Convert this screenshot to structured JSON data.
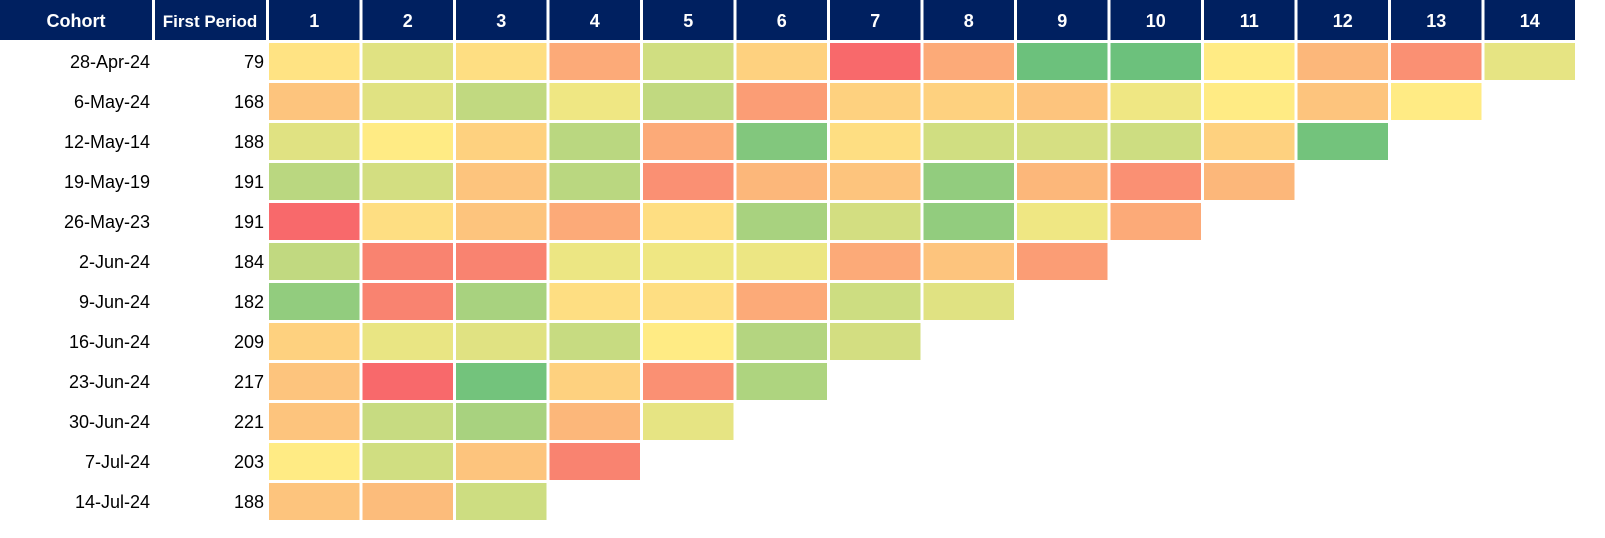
{
  "chart_data": {
    "type": "heatmap",
    "title": "",
    "xlabel": "",
    "ylabel": "",
    "columns": {
      "cohort_header": "Cohort",
      "first_period_header": "First Period",
      "periods": [
        "1",
        "2",
        "3",
        "4",
        "5",
        "6",
        "7",
        "8",
        "9",
        "10",
        "11",
        "12",
        "13",
        "14"
      ]
    },
    "header_color": "#002060",
    "header_text_color": "#ffffff",
    "color_scale": {
      "low": "#f8696b",
      "mid": "#ffeb84",
      "high": "#63be7b",
      "domain": [
        0,
        0.5,
        1
      ]
    },
    "rows": [
      {
        "cohort": "28-Apr-24",
        "first_period": "79",
        "values": [
          0.47,
          0.6,
          0.45,
          0.25,
          0.65,
          0.4,
          0.0,
          0.25,
          0.97,
          0.97,
          0.5,
          0.3,
          0.15,
          0.58
        ]
      },
      {
        "cohort": "6-May-24",
        "first_period": "168",
        "values": [
          0.35,
          0.6,
          0.7,
          0.55,
          0.7,
          0.2,
          0.4,
          0.4,
          0.35,
          0.55,
          0.5,
          0.35,
          0.5
        ]
      },
      {
        "cohort": "12-May-14",
        "first_period": "188",
        "values": [
          0.6,
          0.5,
          0.4,
          0.72,
          0.25,
          0.9,
          0.45,
          0.65,
          0.63,
          0.66,
          0.4,
          0.95
        ]
      },
      {
        "cohort": "19-May-19",
        "first_period": "191",
        "values": [
          0.72,
          0.64,
          0.35,
          0.72,
          0.15,
          0.3,
          0.35,
          0.85,
          0.3,
          0.15,
          0.3
        ]
      },
      {
        "cohort": "26-May-23",
        "first_period": "191",
        "values": [
          0.0,
          0.45,
          0.35,
          0.25,
          0.45,
          0.78,
          0.64,
          0.85,
          0.55,
          0.25
        ]
      },
      {
        "cohort": "2-Jun-24",
        "first_period": "184",
        "values": [
          0.7,
          0.1,
          0.1,
          0.56,
          0.55,
          0.56,
          0.25,
          0.35,
          0.2
        ]
      },
      {
        "cohort": "9-Jun-24",
        "first_period": "182",
        "values": [
          0.85,
          0.1,
          0.78,
          0.45,
          0.45,
          0.25,
          0.66,
          0.6
        ]
      },
      {
        "cohort": "16-Jun-24",
        "first_period": "209",
        "values": [
          0.4,
          0.57,
          0.6,
          0.68,
          0.5,
          0.74,
          0.64
        ]
      },
      {
        "cohort": "23-Jun-24",
        "first_period": "217",
        "values": [
          0.35,
          0.0,
          0.95,
          0.4,
          0.15,
          0.76
        ]
      },
      {
        "cohort": "30-Jun-24",
        "first_period": "221",
        "values": [
          0.35,
          0.68,
          0.78,
          0.3,
          0.58
        ]
      },
      {
        "cohort": "7-Jul-24",
        "first_period": "203",
        "values": [
          0.5,
          0.65,
          0.35,
          0.1
        ]
      },
      {
        "cohort": "14-Jul-24",
        "first_period": "188",
        "values": [
          0.35,
          0.32,
          0.66
        ]
      }
    ]
  }
}
